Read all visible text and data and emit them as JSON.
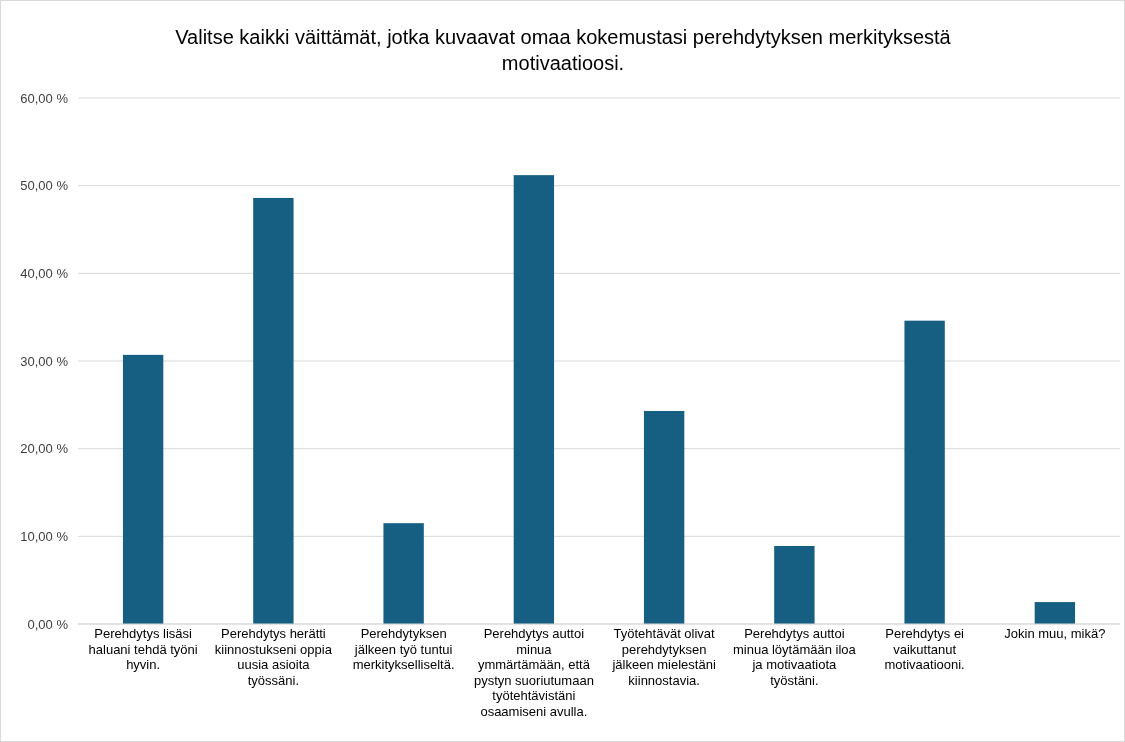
{
  "chart_data": {
    "type": "bar",
    "title": "Valitse kaikki väittämät, jotka kuvaavat omaa kokemustasi perehdytyksen merkityksestä motivaatioosi.",
    "categories": [
      "Perehdytys lisäsi haluani tehdä työni hyvin.",
      "Perehdytys herätti kiinnostukseni oppia uusia asioita työssäni.",
      "Perehdytyksen jälkeen työ tuntui merkitykselliseltä.",
      "Perehdytys auttoi minua ymmärtämään, että pystyn suoriutumaan työtehtävistäni osaamiseni avulla.",
      "Työtehtävät olivat perehdytyksen jälkeen mielestäni kiinnostavia.",
      "Perehdytys auttoi minua löytämään iloa ja motivaatiota työstäni.",
      "Perehdytys ei vaikuttanut motivaatiooni.",
      "Jokin muu, mikä?"
    ],
    "values": [
      30.7,
      48.6,
      11.5,
      51.2,
      24.3,
      8.9,
      34.6,
      2.5
    ],
    "color": "#175f82",
    "ylim": [
      0,
      60
    ],
    "yticks": [
      {
        "value": 0,
        "label": "0,00 %"
      },
      {
        "value": 10,
        "label": "10,00 %"
      },
      {
        "value": 20,
        "label": "20,00 %"
      },
      {
        "value": 30,
        "label": "30,00 %"
      },
      {
        "value": 40,
        "label": "40,00 %"
      },
      {
        "value": 50,
        "label": "50,00 %"
      },
      {
        "value": 60,
        "label": "60,00 %"
      }
    ],
    "grid": "y"
  }
}
